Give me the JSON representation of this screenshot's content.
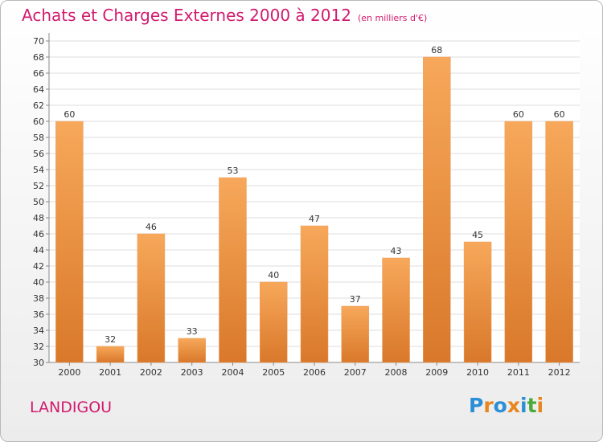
{
  "header": {
    "title": "Achats et Charges Externes 2000 à 2012",
    "unit": "(en milliers d'€)"
  },
  "footer": {
    "city": "LANDIGOU",
    "logo_letters": [
      "P",
      "r",
      "o",
      "x",
      "i",
      "t",
      "i"
    ],
    "logo_colors": [
      "#2a8fd6",
      "#e8861e",
      "#2a8fd6",
      "#e8861e",
      "#2a8fd6",
      "#4bab3a",
      "#e8861e"
    ]
  },
  "colors": {
    "title": "#d11a6e",
    "bar_light": "#f7a85a",
    "bar_dark": "#d9782a",
    "grid": "#dddddd"
  },
  "chart_data": {
    "type": "bar",
    "title": "Achats et Charges Externes 2000 à 2012",
    "subtitle": "(en milliers d'€)",
    "categories": [
      "2000",
      "2001",
      "2002",
      "2003",
      "2004",
      "2005",
      "2006",
      "2007",
      "2008",
      "2009",
      "2010",
      "2011",
      "2012"
    ],
    "values": [
      60,
      32,
      46,
      33,
      53,
      40,
      47,
      37,
      43,
      68,
      45,
      60,
      60
    ],
    "ylim": [
      30,
      70
    ],
    "yticks": [
      30,
      32,
      34,
      36,
      38,
      40,
      42,
      44,
      46,
      48,
      50,
      52,
      54,
      56,
      58,
      60,
      62,
      64,
      66,
      68,
      70
    ],
    "grid": true,
    "data_labels": true,
    "legend": "none"
  }
}
